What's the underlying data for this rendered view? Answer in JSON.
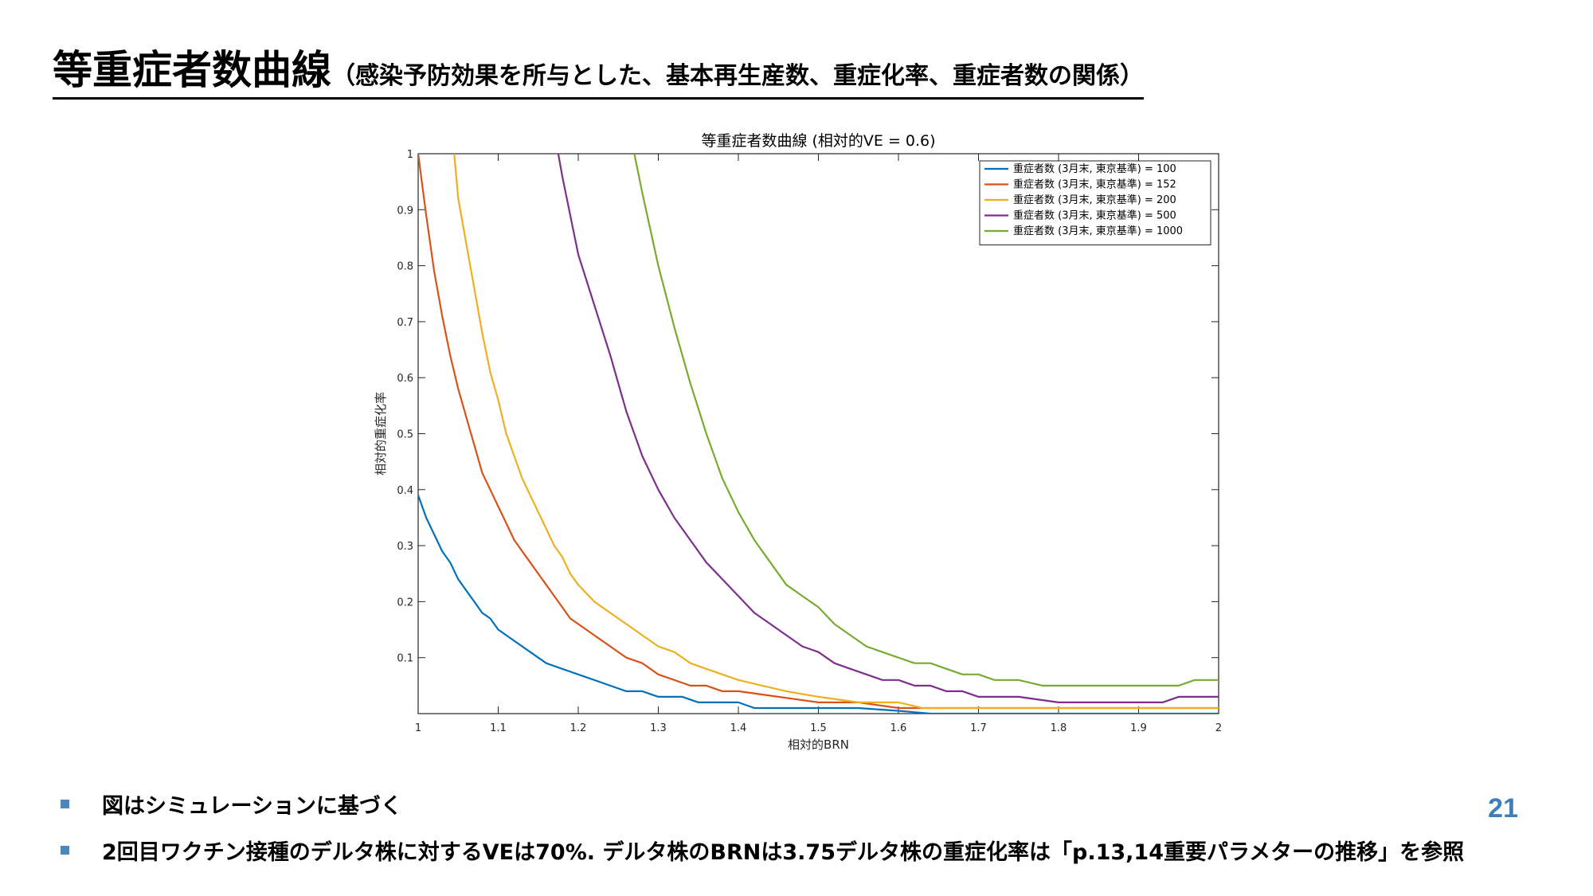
{
  "slide": {
    "title_main": "等重症者数曲線",
    "title_sub": "（感染予防効果を所与とした、基本再生産数、重症化率、重症者数の関係）",
    "page_number": "21",
    "bullets": [
      "図はシミュレーションに基づく",
      "2回目ワクチン接種のデルタ株に対するVEは70%. デルタ株のBRNは3.75デルタ株の重症化率は「p.13,14重要パラメターの推移」を参照"
    ],
    "bullet_color": "#4b87b8",
    "page_number_color": "#3f7fb8"
  },
  "chart_data": {
    "type": "line",
    "title": "等重症者数曲線 (相対的VE = 0.6)",
    "xlabel": "相対的BRN",
    "ylabel": "相対的重症化率",
    "xlim": [
      1,
      2
    ],
    "ylim": [
      0,
      1
    ],
    "xticks": [
      "1",
      "1.1",
      "1.2",
      "1.3",
      "1.4",
      "1.5",
      "1.6",
      "1.7",
      "1.8",
      "1.9",
      "2"
    ],
    "yticks": [
      "0.1",
      "0.2",
      "0.3",
      "0.4",
      "0.5",
      "0.6",
      "0.7",
      "0.8",
      "0.9",
      "1"
    ],
    "grid": false,
    "legend_position": "top-right",
    "series": [
      {
        "name": "重症者数 (3月末, 東京基準) = 100",
        "color": "#0072BD",
        "x": [
          1.0,
          1.01,
          1.02,
          1.03,
          1.04,
          1.05,
          1.06,
          1.07,
          1.08,
          1.09,
          1.1,
          1.12,
          1.14,
          1.16,
          1.18,
          1.2,
          1.22,
          1.24,
          1.26,
          1.28,
          1.3,
          1.33,
          1.35,
          1.38,
          1.4,
          1.42,
          1.45,
          1.5,
          1.55,
          1.6,
          1.64,
          1.7,
          1.8,
          1.9,
          2.0
        ],
        "y": [
          0.39,
          0.35,
          0.32,
          0.29,
          0.27,
          0.24,
          0.22,
          0.2,
          0.18,
          0.17,
          0.15,
          0.13,
          0.11,
          0.09,
          0.08,
          0.07,
          0.06,
          0.05,
          0.04,
          0.04,
          0.03,
          0.03,
          0.02,
          0.02,
          0.02,
          0.01,
          0.01,
          0.01,
          0.01,
          0.005,
          0.0,
          0.0,
          0.0,
          0.0,
          0.0
        ]
      },
      {
        "name": "重症者数 (3月末, 東京基準) = 152",
        "color": "#D95319",
        "x": [
          1.0,
          1.01,
          1.02,
          1.03,
          1.04,
          1.05,
          1.06,
          1.07,
          1.08,
          1.09,
          1.1,
          1.11,
          1.12,
          1.13,
          1.14,
          1.15,
          1.16,
          1.17,
          1.18,
          1.19,
          1.2,
          1.22,
          1.24,
          1.26,
          1.28,
          1.3,
          1.32,
          1.34,
          1.36,
          1.38,
          1.4,
          1.45,
          1.5,
          1.55,
          1.6,
          1.7,
          1.8,
          1.9,
          2.0
        ],
        "y": [
          1.0,
          0.89,
          0.79,
          0.71,
          0.64,
          0.58,
          0.53,
          0.48,
          0.43,
          0.4,
          0.37,
          0.34,
          0.31,
          0.29,
          0.27,
          0.25,
          0.23,
          0.21,
          0.19,
          0.17,
          0.16,
          0.14,
          0.12,
          0.1,
          0.09,
          0.07,
          0.06,
          0.05,
          0.05,
          0.04,
          0.04,
          0.03,
          0.02,
          0.02,
          0.01,
          0.01,
          0.01,
          0.01,
          0.01
        ]
      },
      {
        "name": "重症者数 (3月末, 東京基準) = 200",
        "color": "#EDB120",
        "x": [
          1.045,
          1.05,
          1.06,
          1.07,
          1.08,
          1.09,
          1.1,
          1.11,
          1.12,
          1.13,
          1.14,
          1.15,
          1.16,
          1.17,
          1.18,
          1.19,
          1.2,
          1.22,
          1.24,
          1.26,
          1.28,
          1.3,
          1.32,
          1.34,
          1.36,
          1.38,
          1.4,
          1.43,
          1.46,
          1.5,
          1.55,
          1.6,
          1.63,
          1.7,
          1.8,
          1.9,
          2.0
        ],
        "y": [
          1.0,
          0.92,
          0.84,
          0.76,
          0.68,
          0.61,
          0.56,
          0.5,
          0.46,
          0.42,
          0.39,
          0.36,
          0.33,
          0.3,
          0.28,
          0.25,
          0.23,
          0.2,
          0.18,
          0.16,
          0.14,
          0.12,
          0.11,
          0.09,
          0.08,
          0.07,
          0.06,
          0.05,
          0.04,
          0.03,
          0.02,
          0.02,
          0.01,
          0.01,
          0.01,
          0.01,
          0.01
        ]
      },
      {
        "name": "重症者数 (3月末, 東京基準) = 500",
        "color": "#7E2F8E",
        "x": [
          1.175,
          1.18,
          1.2,
          1.22,
          1.24,
          1.26,
          1.28,
          1.3,
          1.32,
          1.34,
          1.36,
          1.38,
          1.4,
          1.42,
          1.44,
          1.46,
          1.48,
          1.5,
          1.52,
          1.54,
          1.56,
          1.58,
          1.6,
          1.62,
          1.64,
          1.66,
          1.68,
          1.7,
          1.75,
          1.8,
          1.85,
          1.9,
          1.93,
          1.95,
          2.0
        ],
        "y": [
          1.0,
          0.96,
          0.82,
          0.73,
          0.64,
          0.54,
          0.46,
          0.4,
          0.35,
          0.31,
          0.27,
          0.24,
          0.21,
          0.18,
          0.16,
          0.14,
          0.12,
          0.11,
          0.09,
          0.08,
          0.07,
          0.06,
          0.06,
          0.05,
          0.05,
          0.04,
          0.04,
          0.03,
          0.03,
          0.02,
          0.02,
          0.02,
          0.02,
          0.03,
          0.03
        ]
      },
      {
        "name": "重症者数 (3月末, 東京基準) = 1000",
        "color": "#77AC30",
        "x": [
          1.27,
          1.28,
          1.3,
          1.32,
          1.34,
          1.36,
          1.38,
          1.4,
          1.42,
          1.44,
          1.46,
          1.48,
          1.5,
          1.52,
          1.54,
          1.56,
          1.58,
          1.6,
          1.62,
          1.64,
          1.66,
          1.68,
          1.7,
          1.72,
          1.75,
          1.78,
          1.8,
          1.85,
          1.9,
          1.95,
          1.97,
          2.0
        ],
        "y": [
          1.0,
          0.93,
          0.8,
          0.69,
          0.59,
          0.5,
          0.42,
          0.36,
          0.31,
          0.27,
          0.23,
          0.21,
          0.19,
          0.16,
          0.14,
          0.12,
          0.11,
          0.1,
          0.09,
          0.09,
          0.08,
          0.07,
          0.07,
          0.06,
          0.06,
          0.05,
          0.05,
          0.05,
          0.05,
          0.05,
          0.06,
          0.06
        ]
      }
    ]
  }
}
